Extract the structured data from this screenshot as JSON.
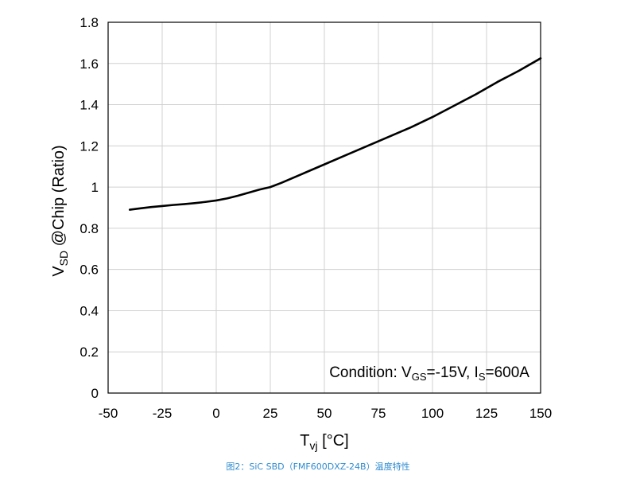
{
  "chart_data": {
    "type": "line",
    "xlabel": {
      "main": "T",
      "sub": "vj",
      "unit": " [°C]"
    },
    "ylabel": {
      "main": "V",
      "sub": "SD",
      "rest": " @Chip (Ratio)"
    },
    "xlim": [
      -50,
      150
    ],
    "ylim": [
      0,
      1.8
    ],
    "xticks": [
      -50,
      -25,
      0,
      25,
      50,
      75,
      100,
      125,
      150
    ],
    "yticks": [
      0,
      0.2,
      0.4,
      0.6,
      0.8,
      1,
      1.2,
      1.4,
      1.6,
      1.8
    ],
    "ytick_labels": [
      "0",
      "0.2",
      "0.4",
      "0.6",
      "0.8",
      "1",
      "1.2",
      "1.4",
      "1.6",
      "1.8"
    ],
    "grid": true,
    "series": [
      {
        "x": [
          -40,
          -35,
          -30,
          -25,
          -20,
          -15,
          -10,
          -5,
          0,
          5,
          10,
          15,
          20,
          25,
          30,
          40,
          50,
          60,
          70,
          80,
          90,
          100,
          110,
          120,
          130,
          140,
          150
        ],
        "y": [
          0.89,
          0.897,
          0.903,
          0.908,
          0.913,
          0.917,
          0.922,
          0.928,
          0.935,
          0.945,
          0.958,
          0.973,
          0.988,
          1.0,
          1.02,
          1.065,
          1.11,
          1.155,
          1.2,
          1.245,
          1.29,
          1.34,
          1.395,
          1.45,
          1.51,
          1.565,
          1.625
        ],
        "color": "#000000"
      }
    ],
    "annotation": {
      "prefix": "Condition: V",
      "sub1": "GS",
      "mid": "=-15V, I",
      "sub2": "S",
      "suffix": "=600A"
    }
  },
  "caption": "图2：SiC SBD（FMF600DXZ-24B）温度特性"
}
